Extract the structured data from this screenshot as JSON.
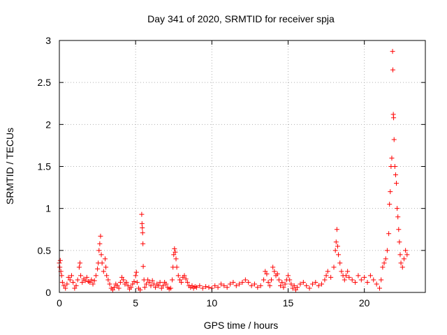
{
  "chart_data": {
    "type": "scatter",
    "title": "Day 341 of 2020, SRMTID for receiver spja",
    "xlabel": "GPS time / hours",
    "ylabel": "SRMTID / TECUs",
    "xlim": [
      0,
      24
    ],
    "ylim": [
      0,
      3
    ],
    "xticks": [
      0,
      5,
      10,
      15,
      20
    ],
    "xtick_labels": [
      "0",
      "5",
      "10",
      "15",
      "20"
    ],
    "yticks": [
      0,
      0.5,
      1,
      1.5,
      2,
      2.5,
      3
    ],
    "ytick_labels": [
      "0",
      "0.5",
      "1",
      "1.5",
      "2",
      "2.5",
      "3"
    ],
    "grid": true,
    "marker": "+",
    "series": [
      {
        "name": "SRMTID",
        "color": "#ff0000",
        "points": [
          [
            0.0,
            0.35
          ],
          [
            0.03,
            0.3
          ],
          [
            0.06,
            0.38
          ],
          [
            0.1,
            0.25
          ],
          [
            0.15,
            0.2
          ],
          [
            0.2,
            0.12
          ],
          [
            0.3,
            0.08
          ],
          [
            0.4,
            0.05
          ],
          [
            0.5,
            0.1
          ],
          [
            0.6,
            0.18
          ],
          [
            0.7,
            0.15
          ],
          [
            0.8,
            0.2
          ],
          [
            0.9,
            0.12
          ],
          [
            1.0,
            0.05
          ],
          [
            1.1,
            0.08
          ],
          [
            1.2,
            0.15
          ],
          [
            1.3,
            0.3
          ],
          [
            1.35,
            0.35
          ],
          [
            1.4,
            0.2
          ],
          [
            1.5,
            0.12
          ],
          [
            1.6,
            0.16
          ],
          [
            1.7,
            0.14
          ],
          [
            1.8,
            0.18
          ],
          [
            1.9,
            0.13
          ],
          [
            2.0,
            0.12
          ],
          [
            2.1,
            0.15
          ],
          [
            2.2,
            0.1
          ],
          [
            2.3,
            0.14
          ],
          [
            2.4,
            0.2
          ],
          [
            2.5,
            0.28
          ],
          [
            2.55,
            0.35
          ],
          [
            2.6,
            0.5
          ],
          [
            2.65,
            0.58
          ],
          [
            2.7,
            0.67
          ],
          [
            2.75,
            0.45
          ],
          [
            2.8,
            0.35
          ],
          [
            2.9,
            0.25
          ],
          [
            3.0,
            0.4
          ],
          [
            3.05,
            0.3
          ],
          [
            3.1,
            0.2
          ],
          [
            3.2,
            0.15
          ],
          [
            3.3,
            0.1
          ],
          [
            3.4,
            0.05
          ],
          [
            3.5,
            0.03
          ],
          [
            3.6,
            0.06
          ],
          [
            3.7,
            0.1
          ],
          [
            3.8,
            0.08
          ],
          [
            3.9,
            0.05
          ],
          [
            4.0,
            0.12
          ],
          [
            4.1,
            0.18
          ],
          [
            4.2,
            0.15
          ],
          [
            4.3,
            0.1
          ],
          [
            4.4,
            0.12
          ],
          [
            4.5,
            0.08
          ],
          [
            4.6,
            0.04
          ],
          [
            4.7,
            0.06
          ],
          [
            4.8,
            0.1
          ],
          [
            4.9,
            0.13
          ],
          [
            5.0,
            0.2
          ],
          [
            5.05,
            0.24
          ],
          [
            5.1,
            0.12
          ],
          [
            5.2,
            0.05
          ],
          [
            5.3,
            0.03
          ],
          [
            5.4,
            0.93
          ],
          [
            5.42,
            0.82
          ],
          [
            5.44,
            0.77
          ],
          [
            5.46,
            0.71
          ],
          [
            5.48,
            0.58
          ],
          [
            5.5,
            0.31
          ],
          [
            5.55,
            0.15
          ],
          [
            5.6,
            0.06
          ],
          [
            5.7,
            0.1
          ],
          [
            5.8,
            0.15
          ],
          [
            5.9,
            0.12
          ],
          [
            6.0,
            0.08
          ],
          [
            6.1,
            0.14
          ],
          [
            6.2,
            0.1
          ],
          [
            6.3,
            0.06
          ],
          [
            6.4,
            0.1
          ],
          [
            6.5,
            0.08
          ],
          [
            6.6,
            0.12
          ],
          [
            6.7,
            0.05
          ],
          [
            6.8,
            0.08
          ],
          [
            6.9,
            0.12
          ],
          [
            7.0,
            0.1
          ],
          [
            7.1,
            0.06
          ],
          [
            7.2,
            0.04
          ],
          [
            7.3,
            0.05
          ],
          [
            7.4,
            0.15
          ],
          [
            7.45,
            0.3
          ],
          [
            7.5,
            0.45
          ],
          [
            7.55,
            0.52
          ],
          [
            7.6,
            0.48
          ],
          [
            7.65,
            0.4
          ],
          [
            7.7,
            0.3
          ],
          [
            7.8,
            0.2
          ],
          [
            7.9,
            0.15
          ],
          [
            8.0,
            0.12
          ],
          [
            8.1,
            0.18
          ],
          [
            8.2,
            0.2
          ],
          [
            8.3,
            0.16
          ],
          [
            8.4,
            0.12
          ],
          [
            8.5,
            0.08
          ],
          [
            8.6,
            0.06
          ],
          [
            8.7,
            0.08
          ],
          [
            8.8,
            0.05
          ],
          [
            8.9,
            0.07
          ],
          [
            9.0,
            0.06
          ],
          [
            9.2,
            0.08
          ],
          [
            9.4,
            0.05
          ],
          [
            9.6,
            0.07
          ],
          [
            9.8,
            0.06
          ],
          [
            10.0,
            0.05
          ],
          [
            10.2,
            0.08
          ],
          [
            10.4,
            0.06
          ],
          [
            10.6,
            0.1
          ],
          [
            10.8,
            0.08
          ],
          [
            11.0,
            0.06
          ],
          [
            11.2,
            0.1
          ],
          [
            11.4,
            0.12
          ],
          [
            11.6,
            0.08
          ],
          [
            11.8,
            0.1
          ],
          [
            12.0,
            0.12
          ],
          [
            12.2,
            0.15
          ],
          [
            12.4,
            0.12
          ],
          [
            12.6,
            0.08
          ],
          [
            12.8,
            0.1
          ],
          [
            13.0,
            0.06
          ],
          [
            13.2,
            0.08
          ],
          [
            13.4,
            0.15
          ],
          [
            13.5,
            0.25
          ],
          [
            13.6,
            0.22
          ],
          [
            13.7,
            0.12
          ],
          [
            13.8,
            0.08
          ],
          [
            13.9,
            0.15
          ],
          [
            14.0,
            0.3
          ],
          [
            14.1,
            0.25
          ],
          [
            14.2,
            0.2
          ],
          [
            14.3,
            0.22
          ],
          [
            14.4,
            0.15
          ],
          [
            14.5,
            0.08
          ],
          [
            14.6,
            0.12
          ],
          [
            14.7,
            0.06
          ],
          [
            14.8,
            0.1
          ],
          [
            14.9,
            0.15
          ],
          [
            15.0,
            0.2
          ],
          [
            15.1,
            0.15
          ],
          [
            15.2,
            0.1
          ],
          [
            15.3,
            0.05
          ],
          [
            15.4,
            0.08
          ],
          [
            15.5,
            0.03
          ],
          [
            15.6,
            0.06
          ],
          [
            15.8,
            0.1
          ],
          [
            16.0,
            0.12
          ],
          [
            16.2,
            0.08
          ],
          [
            16.4,
            0.05
          ],
          [
            16.6,
            0.1
          ],
          [
            16.8,
            0.12
          ],
          [
            17.0,
            0.08
          ],
          [
            17.2,
            0.1
          ],
          [
            17.4,
            0.15
          ],
          [
            17.5,
            0.2
          ],
          [
            17.6,
            0.25
          ],
          [
            17.8,
            0.18
          ],
          [
            18.0,
            0.3
          ],
          [
            18.1,
            0.5
          ],
          [
            18.15,
            0.6
          ],
          [
            18.2,
            0.75
          ],
          [
            18.25,
            0.55
          ],
          [
            18.3,
            0.45
          ],
          [
            18.4,
            0.35
          ],
          [
            18.5,
            0.25
          ],
          [
            18.6,
            0.2
          ],
          [
            18.7,
            0.15
          ],
          [
            18.8,
            0.2
          ],
          [
            18.9,
            0.25
          ],
          [
            19.0,
            0.18
          ],
          [
            19.2,
            0.15
          ],
          [
            19.4,
            0.12
          ],
          [
            19.6,
            0.2
          ],
          [
            19.8,
            0.15
          ],
          [
            20.0,
            0.18
          ],
          [
            20.2,
            0.12
          ],
          [
            20.4,
            0.2
          ],
          [
            20.6,
            0.15
          ],
          [
            20.8,
            0.1
          ],
          [
            21.0,
            0.05
          ],
          [
            21.1,
            0.15
          ],
          [
            21.2,
            0.3
          ],
          [
            21.3,
            0.35
          ],
          [
            21.4,
            0.4
          ],
          [
            21.5,
            0.5
          ],
          [
            21.6,
            0.7
          ],
          [
            21.65,
            1.05
          ],
          [
            21.7,
            1.2
          ],
          [
            21.75,
            1.5
          ],
          [
            21.8,
            1.6
          ],
          [
            21.85,
            2.87
          ],
          [
            21.87,
            2.65
          ],
          [
            21.9,
            2.12
          ],
          [
            21.92,
            2.08
          ],
          [
            21.95,
            1.82
          ],
          [
            22.0,
            1.5
          ],
          [
            22.05,
            1.4
          ],
          [
            22.1,
            1.3
          ],
          [
            22.15,
            1.0
          ],
          [
            22.2,
            0.9
          ],
          [
            22.25,
            0.75
          ],
          [
            22.3,
            0.6
          ],
          [
            22.35,
            0.45
          ],
          [
            22.4,
            0.35
          ],
          [
            22.5,
            0.3
          ],
          [
            22.6,
            0.4
          ],
          [
            22.7,
            0.5
          ],
          [
            22.8,
            0.45
          ]
        ]
      }
    ]
  }
}
